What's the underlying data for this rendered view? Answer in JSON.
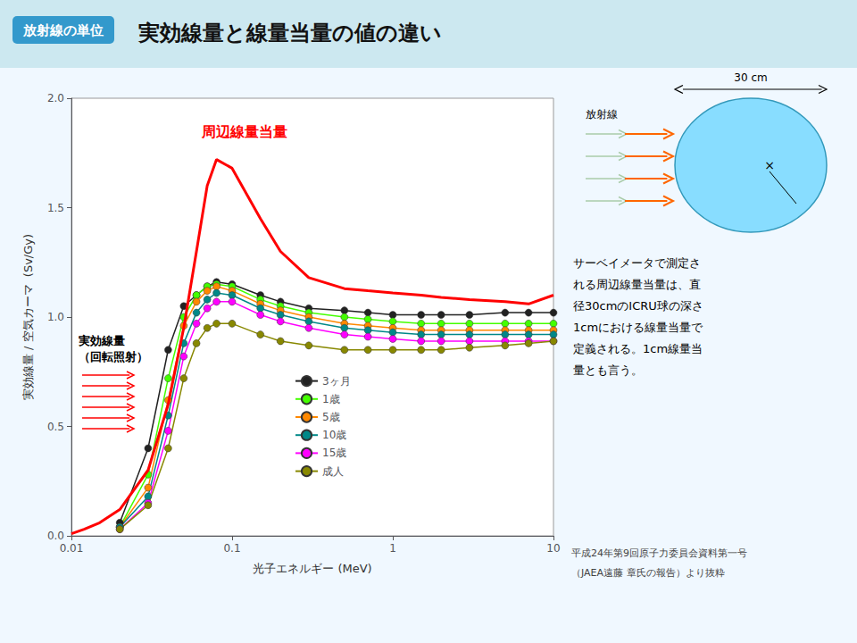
{
  "chart_data": {
    "type": "line",
    "title": "実効線量と線量当量の値の違い",
    "subtitle": "放射線の単位",
    "x_label": "光子エネルギー (MeV)",
    "y_label": "実効線量 / 空気カーマ  (Sv/Gy)",
    "log": "x",
    "grid": false,
    "legend": "bottom",
    "xlim": [
      0.01,
      10
    ],
    "xticks": [
      0.01,
      0.1,
      1,
      10
    ],
    "ylim": [
      0.0,
      2.0
    ],
    "yticks": [
      {
        "value": 0.0,
        "label": "0.0"
      },
      0.5,
      {
        "value": 1.0,
        "label": "1.0"
      },
      1.5,
      {
        "value": 2.0,
        "label": "2.0"
      }
    ],
    "series": [
      {
        "color": "#ff0000",
        "marker": "none",
        "x": [
          0.01,
          0.012,
          0.015,
          0.02,
          0.03,
          0.04,
          0.05,
          0.06,
          0.07,
          0.08,
          0.1,
          0.15,
          0.2,
          0.3,
          0.5,
          0.7,
          1.0,
          1.5,
          2.0,
          3.0,
          5.0,
          7.0,
          10.0
        ],
        "values": [
          0.01,
          0.03,
          0.06,
          0.12,
          0.3,
          0.6,
          0.95,
          1.3,
          1.6,
          1.72,
          1.68,
          1.45,
          1.3,
          1.18,
          1.13,
          1.12,
          1.11,
          1.1,
          1.09,
          1.08,
          1.07,
          1.06,
          1.1
        ]
      },
      {
        "name": "3ヶ月",
        "color": "#222222",
        "marker": "circle",
        "x": [
          0.02,
          0.03,
          0.04,
          0.05,
          0.06,
          0.07,
          0.08,
          0.1,
          0.15,
          0.2,
          0.3,
          0.5,
          0.7,
          1.0,
          1.5,
          2.0,
          3.0,
          5.0,
          7.0,
          10.0
        ],
        "values": [
          0.06,
          0.4,
          0.85,
          1.05,
          1.1,
          1.14,
          1.16,
          1.15,
          1.1,
          1.07,
          1.04,
          1.03,
          1.02,
          1.01,
          1.01,
          1.01,
          1.01,
          1.02,
          1.02,
          1.02
        ]
      },
      {
        "name": "1歳",
        "color": "#44ff00",
        "marker": "circle",
        "x": [
          0.02,
          0.03,
          0.04,
          0.05,
          0.06,
          0.07,
          0.08,
          0.1,
          0.15,
          0.2,
          0.3,
          0.5,
          0.7,
          1.0,
          1.5,
          2.0,
          3.0,
          5.0,
          7.0,
          10.0
        ],
        "values": [
          0.04,
          0.28,
          0.72,
          1.0,
          1.1,
          1.14,
          1.15,
          1.14,
          1.08,
          1.05,
          1.02,
          1.0,
          0.99,
          0.98,
          0.97,
          0.97,
          0.97,
          0.97,
          0.97,
          0.97
        ]
      },
      {
        "name": "5歳",
        "color": "#ff8800",
        "marker": "circle",
        "x": [
          0.02,
          0.03,
          0.04,
          0.05,
          0.06,
          0.07,
          0.08,
          0.1,
          0.15,
          0.2,
          0.3,
          0.5,
          0.7,
          1.0,
          1.5,
          2.0,
          3.0,
          5.0,
          7.0,
          10.0
        ],
        "values": [
          0.04,
          0.22,
          0.62,
          0.96,
          1.07,
          1.12,
          1.14,
          1.12,
          1.06,
          1.03,
          1.0,
          0.97,
          0.96,
          0.95,
          0.94,
          0.94,
          0.94,
          0.94,
          0.94,
          0.94
        ]
      },
      {
        "name": "10歳",
        "color": "#008888",
        "marker": "circle",
        "x": [
          0.02,
          0.03,
          0.04,
          0.05,
          0.06,
          0.07,
          0.08,
          0.1,
          0.15,
          0.2,
          0.3,
          0.5,
          0.7,
          1.0,
          1.5,
          2.0,
          3.0,
          5.0,
          7.0,
          10.0
        ],
        "values": [
          0.04,
          0.18,
          0.55,
          0.88,
          1.02,
          1.08,
          1.11,
          1.1,
          1.04,
          1.01,
          0.98,
          0.95,
          0.94,
          0.93,
          0.92,
          0.92,
          0.92,
          0.92,
          0.92,
          0.92
        ]
      },
      {
        "name": "15歳",
        "color": "#ff00ff",
        "marker": "circle",
        "x": [
          0.02,
          0.03,
          0.04,
          0.05,
          0.06,
          0.07,
          0.08,
          0.1,
          0.15,
          0.2,
          0.3,
          0.5,
          0.7,
          1.0,
          1.5,
          2.0,
          3.0,
          5.0,
          7.0,
          10.0
        ],
        "values": [
          0.03,
          0.15,
          0.48,
          0.82,
          0.97,
          1.04,
          1.07,
          1.07,
          1.01,
          0.98,
          0.95,
          0.92,
          0.91,
          0.9,
          0.89,
          0.89,
          0.89,
          0.89,
          0.89,
          0.89
        ]
      },
      {
        "name": "成人",
        "color": "#888800",
        "marker": "circle",
        "x": [
          0.02,
          0.03,
          0.04,
          0.05,
          0.06,
          0.07,
          0.08,
          0.1,
          0.15,
          0.2,
          0.3,
          0.5,
          0.7,
          1.0,
          1.5,
          2.0,
          3.0,
          5.0,
          7.0,
          10.0
        ],
        "values": [
          0.03,
          0.14,
          0.4,
          0.72,
          0.88,
          0.95,
          0.97,
          0.97,
          0.92,
          0.89,
          0.87,
          0.85,
          0.85,
          0.85,
          0.85,
          0.85,
          0.86,
          0.87,
          0.88,
          0.89
        ]
      }
    ],
    "annotations": [
      {
        "text": "周辺線量当量",
        "color": "#ff0000"
      },
      {
        "text": "実効線量\n（回転照射）",
        "color": "black"
      },
      {
        "text": "サーベイメータで測定さ",
        "color": "black"
      },
      {
        "text": "れる周辺線量当量は、直",
        "color": "black"
      },
      {
        "text": "径30cmのICRU球の深さ",
        "color": "black"
      },
      {
        "text": "1cmにおける線量当量で",
        "color": "black"
      },
      {
        "text": "定義される。1cm線量当",
        "color": "black"
      },
      {
        "text": "量とも言う。",
        "color": "black"
      },
      {
        "text": "平成24年第9回原子力委員会資料第一号",
        "color": "#444444"
      },
      {
        "text": "（JAEA遠藤 章氏の報告）より抜粋",
        "color": "#444444"
      },
      {
        "text": "30 cm",
        "color": "black"
      },
      {
        "text": "放射線",
        "color": "black"
      },
      {
        "text": "×",
        "color": "black"
      }
    ]
  }
}
